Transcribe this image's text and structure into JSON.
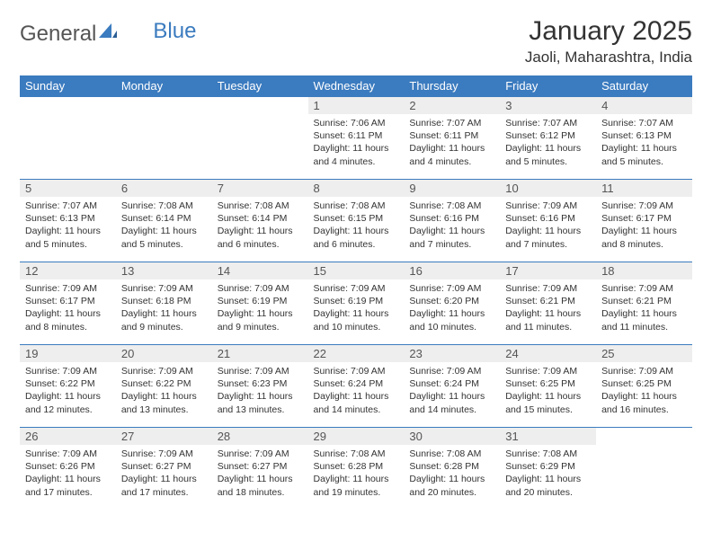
{
  "brand": {
    "name_part1": "General",
    "name_part2": "Blue"
  },
  "title": "January 2025",
  "location": "Jaoli, Maharashtra, India",
  "colors": {
    "header_bg": "#3b7bbf",
    "header_text": "#ffffff",
    "daynum_bg": "#eeeeee",
    "row_border": "#3b7bbf",
    "body_bg": "#ffffff",
    "text": "#333333"
  },
  "typography": {
    "title_fontsize": 30,
    "location_fontsize": 17,
    "dayheader_fontsize": 13,
    "daynum_fontsize": 13,
    "body_fontsize": 10.5,
    "font_family": "Arial"
  },
  "day_headers": [
    "Sunday",
    "Monday",
    "Tuesday",
    "Wednesday",
    "Thursday",
    "Friday",
    "Saturday"
  ],
  "weeks": [
    [
      {
        "empty": true
      },
      {
        "empty": true
      },
      {
        "empty": true
      },
      {
        "num": "1",
        "sunrise": "Sunrise: 7:06 AM",
        "sunset": "Sunset: 6:11 PM",
        "daylight": "Daylight: 11 hours and 4 minutes."
      },
      {
        "num": "2",
        "sunrise": "Sunrise: 7:07 AM",
        "sunset": "Sunset: 6:11 PM",
        "daylight": "Daylight: 11 hours and 4 minutes."
      },
      {
        "num": "3",
        "sunrise": "Sunrise: 7:07 AM",
        "sunset": "Sunset: 6:12 PM",
        "daylight": "Daylight: 11 hours and 5 minutes."
      },
      {
        "num": "4",
        "sunrise": "Sunrise: 7:07 AM",
        "sunset": "Sunset: 6:13 PM",
        "daylight": "Daylight: 11 hours and 5 minutes."
      }
    ],
    [
      {
        "num": "5",
        "sunrise": "Sunrise: 7:07 AM",
        "sunset": "Sunset: 6:13 PM",
        "daylight": "Daylight: 11 hours and 5 minutes."
      },
      {
        "num": "6",
        "sunrise": "Sunrise: 7:08 AM",
        "sunset": "Sunset: 6:14 PM",
        "daylight": "Daylight: 11 hours and 5 minutes."
      },
      {
        "num": "7",
        "sunrise": "Sunrise: 7:08 AM",
        "sunset": "Sunset: 6:14 PM",
        "daylight": "Daylight: 11 hours and 6 minutes."
      },
      {
        "num": "8",
        "sunrise": "Sunrise: 7:08 AM",
        "sunset": "Sunset: 6:15 PM",
        "daylight": "Daylight: 11 hours and 6 minutes."
      },
      {
        "num": "9",
        "sunrise": "Sunrise: 7:08 AM",
        "sunset": "Sunset: 6:16 PM",
        "daylight": "Daylight: 11 hours and 7 minutes."
      },
      {
        "num": "10",
        "sunrise": "Sunrise: 7:09 AM",
        "sunset": "Sunset: 6:16 PM",
        "daylight": "Daylight: 11 hours and 7 minutes."
      },
      {
        "num": "11",
        "sunrise": "Sunrise: 7:09 AM",
        "sunset": "Sunset: 6:17 PM",
        "daylight": "Daylight: 11 hours and 8 minutes."
      }
    ],
    [
      {
        "num": "12",
        "sunrise": "Sunrise: 7:09 AM",
        "sunset": "Sunset: 6:17 PM",
        "daylight": "Daylight: 11 hours and 8 minutes."
      },
      {
        "num": "13",
        "sunrise": "Sunrise: 7:09 AM",
        "sunset": "Sunset: 6:18 PM",
        "daylight": "Daylight: 11 hours and 9 minutes."
      },
      {
        "num": "14",
        "sunrise": "Sunrise: 7:09 AM",
        "sunset": "Sunset: 6:19 PM",
        "daylight": "Daylight: 11 hours and 9 minutes."
      },
      {
        "num": "15",
        "sunrise": "Sunrise: 7:09 AM",
        "sunset": "Sunset: 6:19 PM",
        "daylight": "Daylight: 11 hours and 10 minutes."
      },
      {
        "num": "16",
        "sunrise": "Sunrise: 7:09 AM",
        "sunset": "Sunset: 6:20 PM",
        "daylight": "Daylight: 11 hours and 10 minutes."
      },
      {
        "num": "17",
        "sunrise": "Sunrise: 7:09 AM",
        "sunset": "Sunset: 6:21 PM",
        "daylight": "Daylight: 11 hours and 11 minutes."
      },
      {
        "num": "18",
        "sunrise": "Sunrise: 7:09 AM",
        "sunset": "Sunset: 6:21 PM",
        "daylight": "Daylight: 11 hours and 11 minutes."
      }
    ],
    [
      {
        "num": "19",
        "sunrise": "Sunrise: 7:09 AM",
        "sunset": "Sunset: 6:22 PM",
        "daylight": "Daylight: 11 hours and 12 minutes."
      },
      {
        "num": "20",
        "sunrise": "Sunrise: 7:09 AM",
        "sunset": "Sunset: 6:22 PM",
        "daylight": "Daylight: 11 hours and 13 minutes."
      },
      {
        "num": "21",
        "sunrise": "Sunrise: 7:09 AM",
        "sunset": "Sunset: 6:23 PM",
        "daylight": "Daylight: 11 hours and 13 minutes."
      },
      {
        "num": "22",
        "sunrise": "Sunrise: 7:09 AM",
        "sunset": "Sunset: 6:24 PM",
        "daylight": "Daylight: 11 hours and 14 minutes."
      },
      {
        "num": "23",
        "sunrise": "Sunrise: 7:09 AM",
        "sunset": "Sunset: 6:24 PM",
        "daylight": "Daylight: 11 hours and 14 minutes."
      },
      {
        "num": "24",
        "sunrise": "Sunrise: 7:09 AM",
        "sunset": "Sunset: 6:25 PM",
        "daylight": "Daylight: 11 hours and 15 minutes."
      },
      {
        "num": "25",
        "sunrise": "Sunrise: 7:09 AM",
        "sunset": "Sunset: 6:25 PM",
        "daylight": "Daylight: 11 hours and 16 minutes."
      }
    ],
    [
      {
        "num": "26",
        "sunrise": "Sunrise: 7:09 AM",
        "sunset": "Sunset: 6:26 PM",
        "daylight": "Daylight: 11 hours and 17 minutes."
      },
      {
        "num": "27",
        "sunrise": "Sunrise: 7:09 AM",
        "sunset": "Sunset: 6:27 PM",
        "daylight": "Daylight: 11 hours and 17 minutes."
      },
      {
        "num": "28",
        "sunrise": "Sunrise: 7:09 AM",
        "sunset": "Sunset: 6:27 PM",
        "daylight": "Daylight: 11 hours and 18 minutes."
      },
      {
        "num": "29",
        "sunrise": "Sunrise: 7:08 AM",
        "sunset": "Sunset: 6:28 PM",
        "daylight": "Daylight: 11 hours and 19 minutes."
      },
      {
        "num": "30",
        "sunrise": "Sunrise: 7:08 AM",
        "sunset": "Sunset: 6:28 PM",
        "daylight": "Daylight: 11 hours and 20 minutes."
      },
      {
        "num": "31",
        "sunrise": "Sunrise: 7:08 AM",
        "sunset": "Sunset: 6:29 PM",
        "daylight": "Daylight: 11 hours and 20 minutes."
      },
      {
        "empty": true
      }
    ]
  ]
}
